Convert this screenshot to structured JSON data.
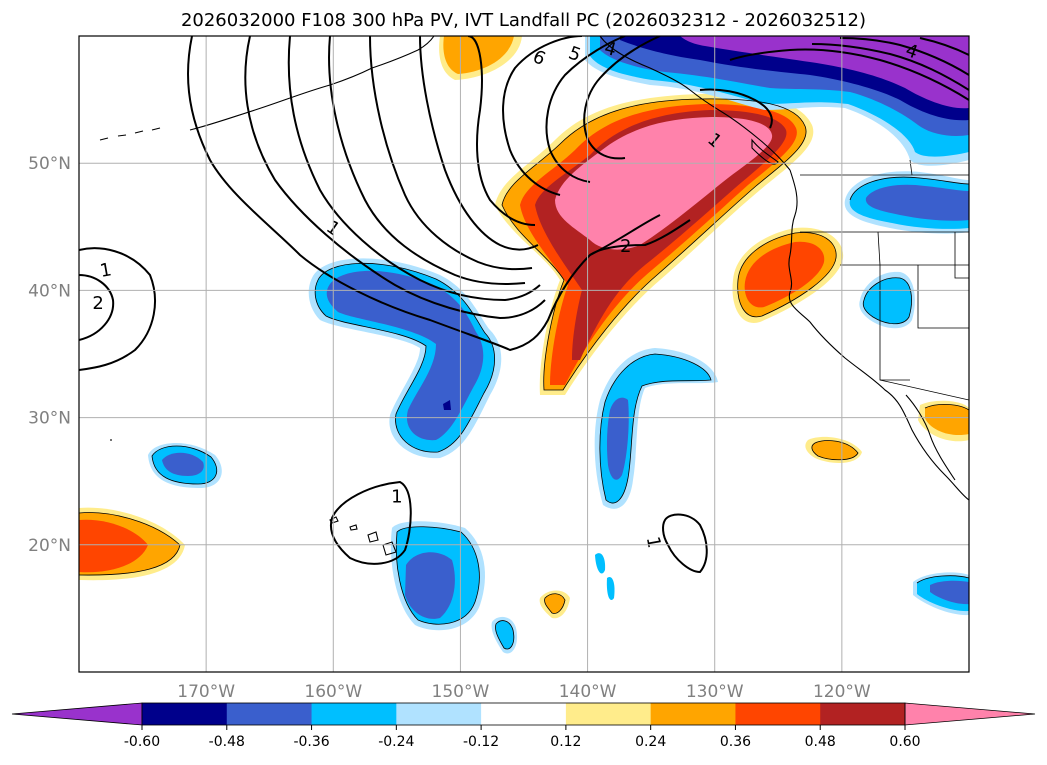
{
  "title": "2026032000 F108 300 hPa PV, IVT Landfall PC (2026032312 - 2026032512)",
  "map": {
    "lon_range": [
      -180,
      -110
    ],
    "lat_range": [
      10,
      60
    ],
    "lat_ticks": [
      {
        "value": 20,
        "label": "20°N"
      },
      {
        "value": 30,
        "label": "30°N"
      },
      {
        "value": 40,
        "label": "40°N"
      },
      {
        "value": 50,
        "label": "50°N"
      }
    ],
    "lon_ticks": [
      {
        "value": -170,
        "label": "170°W"
      },
      {
        "value": -160,
        "label": "160°W"
      },
      {
        "value": -150,
        "label": "150°W"
      },
      {
        "value": -140,
        "label": "140°W"
      },
      {
        "value": -130,
        "label": "130°W"
      },
      {
        "value": -120,
        "label": "120°W"
      }
    ],
    "grid": true
  },
  "colorbar": {
    "levels": [
      "-0.60",
      "-0.48",
      "-0.36",
      "-0.24",
      "-0.12",
      "0.12",
      "0.24",
      "0.36",
      "0.48",
      "0.60"
    ],
    "colors": [
      "#9932cc",
      "#00008b",
      "#3a5fcd",
      "#00bfff",
      "#b0e2ff",
      "#ffffff",
      "#ffec8b",
      "#ffa500",
      "#ff4500",
      "#b22222",
      "#ff82ab"
    ],
    "extend": "both"
  },
  "pv_contour_labels": [
    {
      "text": "1",
      "lon": -160.0,
      "lat": 44.9,
      "rot": 35
    },
    {
      "text": "1",
      "lon": -177.9,
      "lat": 41.6,
      "rot": -10
    },
    {
      "text": "2",
      "lon": -178.5,
      "lat": 39.0,
      "rot": 0
    },
    {
      "text": "1",
      "lon": -155.0,
      "lat": 23.8,
      "rot": 0
    },
    {
      "text": "1",
      "lon": -134.8,
      "lat": 20.2,
      "rot": 80
    },
    {
      "text": "2",
      "lon": -137.0,
      "lat": 43.5,
      "rot": 0
    },
    {
      "text": "6",
      "lon": -143.8,
      "lat": 58.3,
      "rot": 25
    },
    {
      "text": "5",
      "lon": -141.0,
      "lat": 58.6,
      "rot": 20
    },
    {
      "text": "4",
      "lon": -138.2,
      "lat": 59.0,
      "rot": 15
    },
    {
      "text": "1",
      "lon": -130.0,
      "lat": 51.8,
      "rot": 40
    },
    {
      "text": "4",
      "lon": -114.5,
      "lat": 58.8,
      "rot": 20
    }
  ]
}
